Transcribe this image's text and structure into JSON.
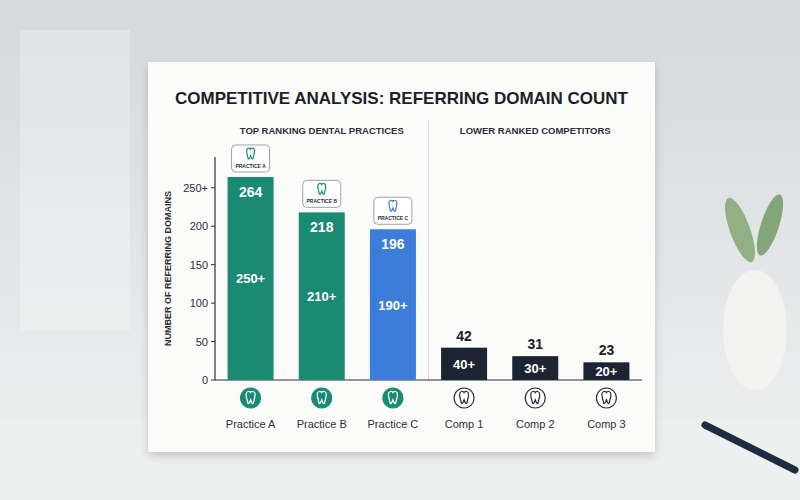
{
  "chart_data": {
    "type": "bar",
    "title": "COMPETITIVE ANALYSIS: REFERRING DOMAIN COUNT",
    "y_label": "NUMBER OF REFERRING DOMAINS",
    "categories": [
      "Practice A",
      "Practice B",
      "Practice C",
      "Comp 1",
      "Comp 2",
      "Comp 3"
    ],
    "values": [
      264,
      218,
      196,
      42,
      31,
      23
    ],
    "inner_labels": [
      "250+",
      "210+",
      "190+",
      "40+",
      "30+",
      "20+"
    ],
    "badges": [
      "PRACTICE A",
      "PRACTICE B",
      "PRACTICE C",
      null,
      null,
      null
    ],
    "groups": [
      {
        "label": "TOP RANKING DENTAL PRACTICES",
        "categories": [
          "Practice A",
          "Practice B",
          "Practice C"
        ]
      },
      {
        "label": "LOWER RANKED COMPETITORS",
        "categories": [
          "Comp 1",
          "Comp 2",
          "Comp 3"
        ]
      }
    ],
    "colors": [
      "#1a8a72",
      "#1a8a72",
      "#3b7dd8",
      "#1c2434",
      "#1c2434",
      "#1c2434"
    ],
    "ylim": [
      0,
      290
    ],
    "yticks": [
      0,
      50,
      100,
      150,
      200,
      {
        "value": 250,
        "label": "250+"
      }
    ],
    "grid": false,
    "data_labels": true
  }
}
